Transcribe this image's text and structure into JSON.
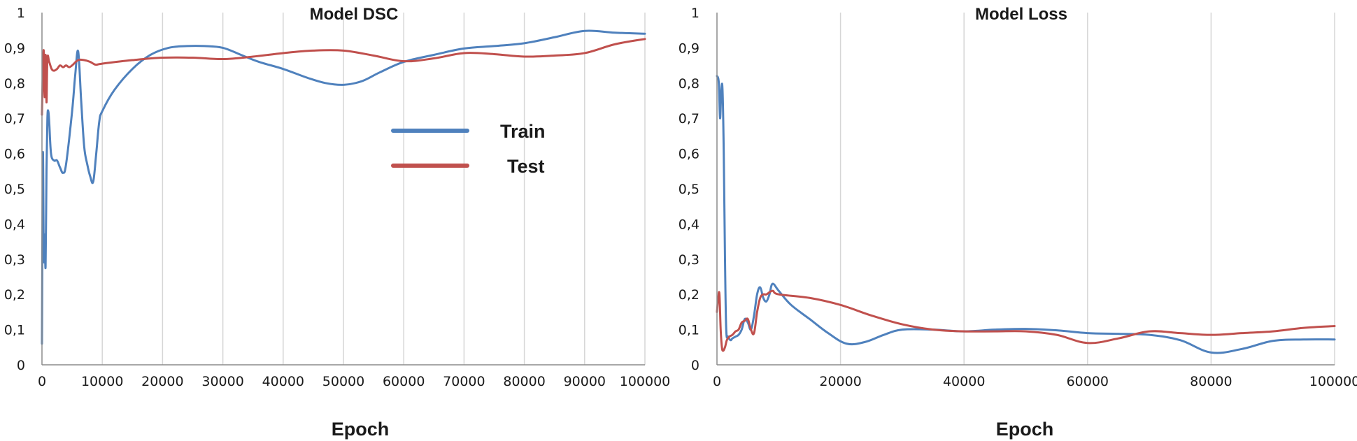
{
  "colors": {
    "train": "#4f81bd",
    "test": "#c0504d",
    "grid": "#d6d6d6",
    "axis": "#8c8c8c"
  },
  "chart_data": [
    {
      "type": "line",
      "title": "Model DSC",
      "xlabel": "Epoch",
      "ylabel": "",
      "xlim": [
        0,
        100000
      ],
      "ylim": [
        0,
        1
      ],
      "x_ticks": [
        "0",
        "10000",
        "20000",
        "30000",
        "40000",
        "50000",
        "60000",
        "70000",
        "80000",
        "90000",
        "100000"
      ],
      "y_ticks": [
        "0",
        "0,1",
        "0,2",
        "0,3",
        "0,4",
        "0,5",
        "0,6",
        "0,7",
        "0,8",
        "0,9",
        "1"
      ],
      "grid": "vertical",
      "legend": {
        "placement": "center-right",
        "entries": [
          "Train",
          "Test"
        ]
      },
      "series": [
        {
          "name": "Train",
          "color": "#4f81bd",
          "x": [
            0,
            150,
            300,
            450,
            600,
            750,
            900,
            1050,
            1200,
            1500,
            2000,
            2500,
            3000,
            3500,
            4000,
            5000,
            5500,
            6000,
            6500,
            7000,
            7500,
            8000,
            8500,
            9000,
            9500,
            10000,
            12000,
            15000,
            18000,
            21000,
            24000,
            27000,
            30000,
            33000,
            36000,
            40000,
            44000,
            47000,
            50000,
            53000,
            56000,
            60000,
            65000,
            70000,
            75000,
            80000,
            85000,
            90000,
            95000,
            100000
          ],
          "y": [
            0.06,
            0.6,
            0.3,
            0.37,
            0.28,
            0.55,
            0.7,
            0.72,
            0.69,
            0.6,
            0.58,
            0.58,
            0.56,
            0.545,
            0.57,
            0.72,
            0.82,
            0.89,
            0.75,
            0.62,
            0.57,
            0.535,
            0.52,
            0.6,
            0.69,
            0.72,
            0.78,
            0.84,
            0.88,
            0.9,
            0.905,
            0.905,
            0.9,
            0.88,
            0.86,
            0.84,
            0.815,
            0.8,
            0.795,
            0.805,
            0.83,
            0.86,
            0.88,
            0.898,
            0.905,
            0.913,
            0.93,
            0.948,
            0.943,
            0.94
          ]
        },
        {
          "name": "Test",
          "color": "#c0504d",
          "x": [
            0,
            150,
            300,
            450,
            600,
            750,
            900,
            1200,
            1600,
            2000,
            2500,
            3000,
            3500,
            4000,
            4500,
            5000,
            6000,
            7000,
            8000,
            8500,
            9000,
            10000,
            15000,
            20000,
            25000,
            30000,
            35000,
            40000,
            45000,
            50000,
            55000,
            60000,
            65000,
            70000,
            75000,
            80000,
            85000,
            90000,
            95000,
            100000
          ],
          "y": [
            0.71,
            0.84,
            0.89,
            0.76,
            0.88,
            0.745,
            0.87,
            0.86,
            0.84,
            0.835,
            0.84,
            0.85,
            0.845,
            0.85,
            0.845,
            0.85,
            0.865,
            0.865,
            0.86,
            0.855,
            0.852,
            0.855,
            0.865,
            0.872,
            0.872,
            0.868,
            0.875,
            0.885,
            0.892,
            0.892,
            0.878,
            0.862,
            0.87,
            0.885,
            0.882,
            0.875,
            0.878,
            0.885,
            0.91,
            0.925
          ]
        }
      ]
    },
    {
      "type": "line",
      "title": "Model Loss",
      "xlabel": "Epoch",
      "ylabel": "",
      "xlim": [
        0,
        100000
      ],
      "ylim": [
        0,
        1
      ],
      "x_ticks": [
        "0",
        "20000",
        "40000",
        "60000",
        "80000",
        "100000"
      ],
      "y_ticks": [
        "0",
        "0,1",
        "0,2",
        "0,3",
        "0,4",
        "0,5",
        "0,6",
        "0,7",
        "0,8",
        "0,9",
        "1"
      ],
      "grid": "vertical",
      "legend": null,
      "series": [
        {
          "name": "Train",
          "color": "#4f81bd",
          "x": [
            0,
            300,
            500,
            700,
            900,
            1100,
            1300,
            1500,
            1800,
            2200,
            2500,
            3000,
            3500,
            4000,
            4500,
            5000,
            5500,
            6000,
            6500,
            7000,
            7500,
            8000,
            8500,
            9000,
            10000,
            12000,
            15000,
            18000,
            21000,
            24000,
            27000,
            30000,
            35000,
            40000,
            45000,
            50000,
            55000,
            60000,
            65000,
            70000,
            75000,
            80000,
            85000,
            90000,
            95000,
            100000
          ],
          "y": [
            0.82,
            0.8,
            0.7,
            0.78,
            0.78,
            0.6,
            0.3,
            0.1,
            0.08,
            0.07,
            0.075,
            0.08,
            0.085,
            0.1,
            0.13,
            0.12,
            0.1,
            0.14,
            0.2,
            0.22,
            0.19,
            0.18,
            0.2,
            0.23,
            0.21,
            0.17,
            0.13,
            0.09,
            0.06,
            0.065,
            0.085,
            0.1,
            0.1,
            0.095,
            0.1,
            0.102,
            0.098,
            0.09,
            0.088,
            0.085,
            0.07,
            0.035,
            0.045,
            0.068,
            0.072,
            0.072
          ]
        },
        {
          "name": "Test",
          "color": "#c0504d",
          "x": [
            0,
            200,
            400,
            600,
            800,
            1000,
            1300,
            1600,
            2000,
            2500,
            3000,
            3500,
            4000,
            4500,
            5000,
            5500,
            6000,
            6500,
            7000,
            7500,
            8000,
            9000,
            10000,
            15000,
            20000,
            25000,
            30000,
            35000,
            40000,
            45000,
            50000,
            55000,
            60000,
            65000,
            70000,
            75000,
            80000,
            85000,
            90000,
            95000,
            100000
          ],
          "y": [
            0.15,
            0.19,
            0.2,
            0.1,
            0.05,
            0.04,
            0.05,
            0.07,
            0.08,
            0.085,
            0.095,
            0.1,
            0.12,
            0.125,
            0.13,
            0.1,
            0.09,
            0.15,
            0.19,
            0.2,
            0.2,
            0.21,
            0.2,
            0.19,
            0.17,
            0.14,
            0.115,
            0.1,
            0.095,
            0.095,
            0.095,
            0.085,
            0.062,
            0.075,
            0.095,
            0.09,
            0.085,
            0.09,
            0.095,
            0.105,
            0.11
          ]
        }
      ]
    }
  ]
}
